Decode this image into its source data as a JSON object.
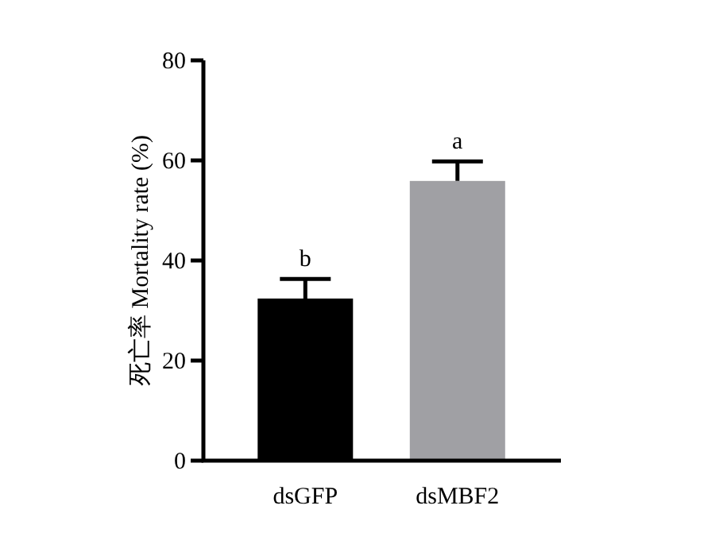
{
  "chart_data": {
    "type": "bar",
    "ylabel": "死亡率 Mortality rate (%)",
    "categories": [
      "dsGFP",
      "dsMBF2"
    ],
    "values": [
      32.4,
      55.9
    ],
    "errors": [
      3.9,
      3.9
    ],
    "colors": [
      "#000000",
      "#a0a0a4"
    ],
    "ylim": [
      0,
      80
    ],
    "yticks": [
      0,
      20,
      40,
      60,
      80
    ],
    "annotations": [
      {
        "text": "b",
        "x": "dsGFP",
        "y": 36.3
      },
      {
        "text": "a",
        "x": "dsMBF2",
        "y": 59.8
      }
    ]
  }
}
